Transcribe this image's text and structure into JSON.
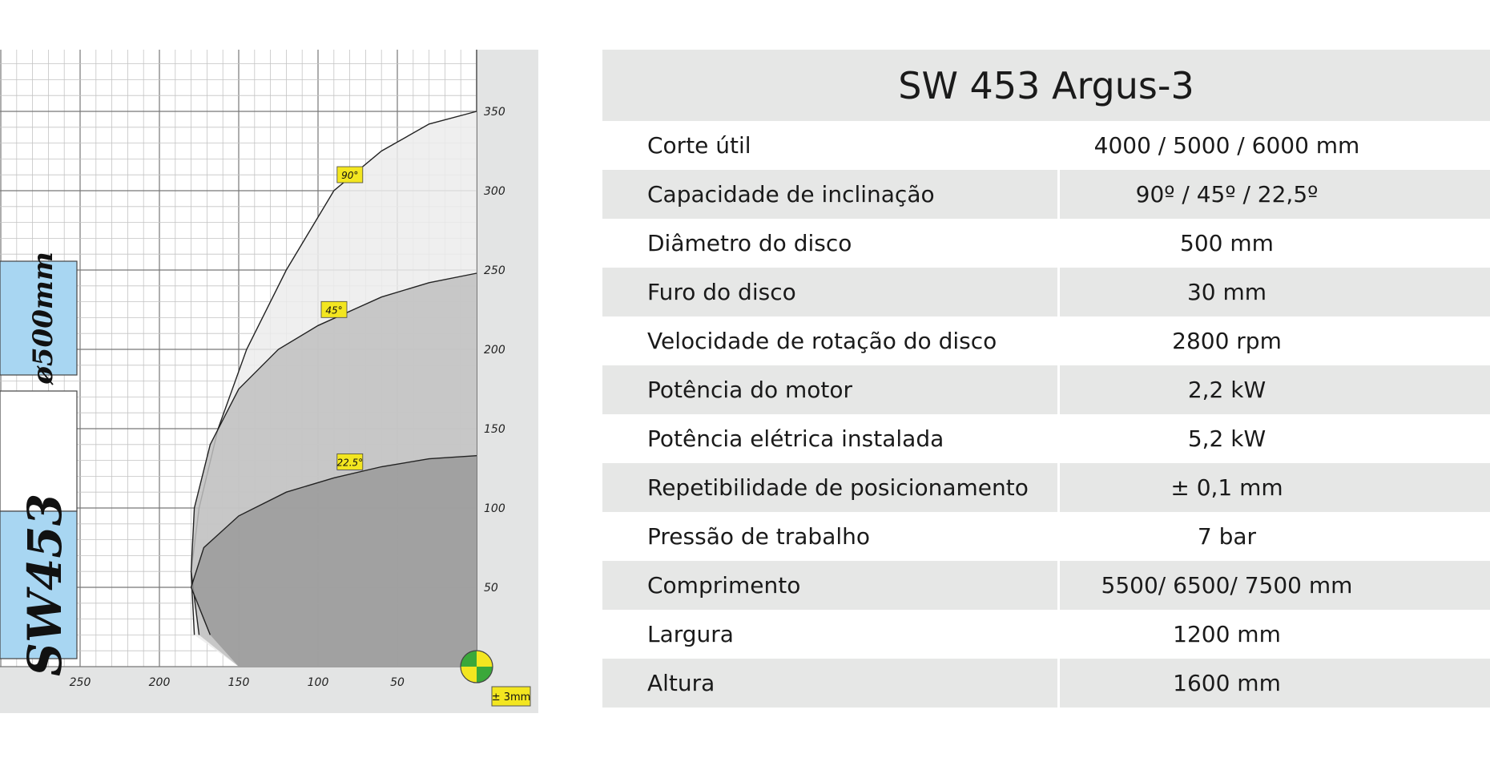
{
  "chart_data": {
    "type": "area",
    "title": "",
    "xlabel": "",
    "ylabel": "",
    "x_ticks": [
      250,
      200,
      150,
      100,
      50
    ],
    "y_ticks": [
      50,
      100,
      150,
      200,
      250,
      300,
      350
    ],
    "xlim": [
      0,
      300
    ],
    "ylim": [
      0,
      350
    ],
    "x_reversed": true,
    "grid": true,
    "series": [
      {
        "name": "90°",
        "color": "#ececec",
        "points": [
          [
            150,
            0
          ],
          [
            178,
            20
          ],
          [
            180,
            60
          ],
          [
            175,
            100
          ],
          [
            163,
            150
          ],
          [
            145,
            200
          ],
          [
            120,
            250
          ],
          [
            90,
            300
          ],
          [
            60,
            325
          ],
          [
            30,
            342
          ],
          [
            0,
            350
          ]
        ]
      },
      {
        "name": "45°",
        "color": "#c0c0c0",
        "points": [
          [
            150,
            0
          ],
          [
            175,
            20
          ],
          [
            180,
            60
          ],
          [
            178,
            100
          ],
          [
            168,
            140
          ],
          [
            150,
            175
          ],
          [
            125,
            200
          ],
          [
            100,
            215
          ],
          [
            60,
            233
          ],
          [
            30,
            242
          ],
          [
            0,
            248
          ]
        ]
      },
      {
        "name": "22.5°",
        "color": "#9a9a9a",
        "points": [
          [
            150,
            0
          ],
          [
            168,
            20
          ],
          [
            180,
            50
          ],
          [
            172,
            75
          ],
          [
            150,
            95
          ],
          [
            120,
            110
          ],
          [
            90,
            119
          ],
          [
            60,
            126
          ],
          [
            30,
            131
          ],
          [
            0,
            133
          ]
        ]
      }
    ],
    "tolerance_label": "± 3mm",
    "side_labels": {
      "diameter": "ø500mm",
      "model": "SW453"
    },
    "colors": {
      "label_bg": "#f3e620",
      "side_panel": "#a8d6f2",
      "chart_bg": "#e3e4e4"
    }
  },
  "specs": {
    "title": "SW 453 Argus-3",
    "rows": [
      {
        "label": "Corte útil",
        "value": "4000 / 5000 / 6000 mm"
      },
      {
        "label": "Capacidade de inclinação",
        "value": "90º / 45º / 22,5º"
      },
      {
        "label": "Diâmetro do disco",
        "value": "500 mm"
      },
      {
        "label": "Furo do disco",
        "value": "30 mm"
      },
      {
        "label": "Velocidade de rotação do disco",
        "value": "2800 rpm"
      },
      {
        "label": "Potência do motor",
        "value": "2,2 kW"
      },
      {
        "label": "Potência elétrica instalada",
        "value": "5,2 kW"
      },
      {
        "label": "Repetibilidade de posicionamento",
        "value": "± 0,1 mm"
      },
      {
        "label": "Pressão de trabalho",
        "value": "7 bar"
      },
      {
        "label": "Comprimento",
        "value": "5500/ 6500/ 7500 mm"
      },
      {
        "label": "Largura",
        "value": "1200 mm"
      },
      {
        "label": "Altura",
        "value": "1600 mm"
      }
    ]
  }
}
